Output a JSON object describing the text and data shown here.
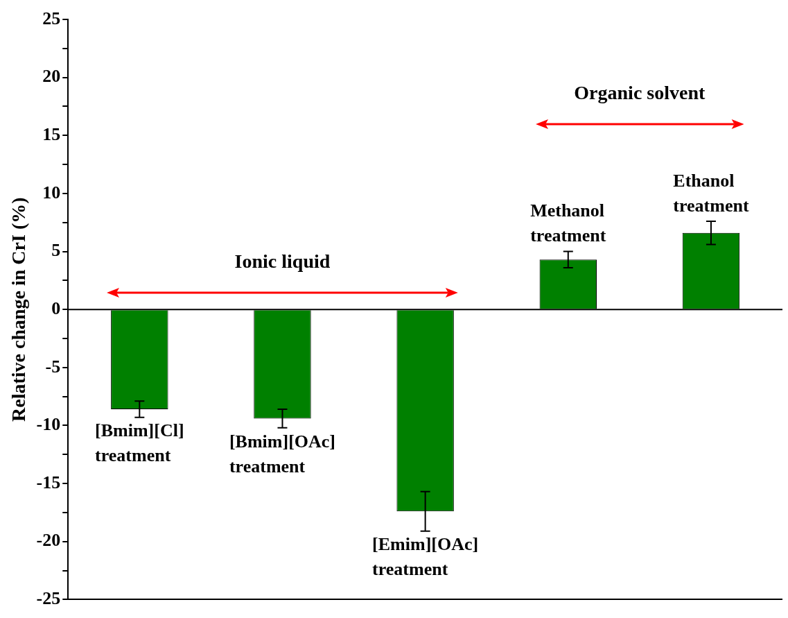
{
  "chart_data": {
    "type": "bar",
    "ylabel": "Relative change in CrI (%)",
    "categories": [
      "[Bmim][Cl]\ntreatment",
      "[Bmim][OAc]\ntreatment",
      "[Emim][OAc]\ntreatment",
      "Methanol\ntreatment",
      "Ethanol\ntreatment"
    ],
    "values": [
      -8.6,
      -9.4,
      -17.4,
      4.3,
      6.6
    ],
    "errors": [
      0.7,
      0.8,
      1.7,
      0.7,
      1.0
    ],
    "color": "#008000",
    "ylim": [
      -25,
      25
    ],
    "yticks": [
      -25,
      {
        "value": -22.5,
        "label": null
      },
      -20,
      {
        "value": -17.5,
        "label": null
      },
      -15,
      {
        "value": -12.5,
        "label": null
      },
      -10,
      {
        "value": -7.5,
        "label": null
      },
      -5,
      {
        "value": -2.5,
        "label": null
      },
      0,
      {
        "value": 2.5,
        "label": null
      },
      5,
      {
        "value": 7.5,
        "label": null
      },
      10,
      {
        "value": 12.5,
        "label": null
      },
      15,
      {
        "value": 17.5,
        "label": null
      },
      20,
      {
        "value": 22.5,
        "label": null
      },
      25
    ],
    "ref_lines": [
      {
        "axis": "y",
        "value": 0,
        "color": "#000000"
      }
    ],
    "annotations": [
      "Ionic liquid",
      "Organic solvent"
    ],
    "grid": false,
    "legend": false
  }
}
